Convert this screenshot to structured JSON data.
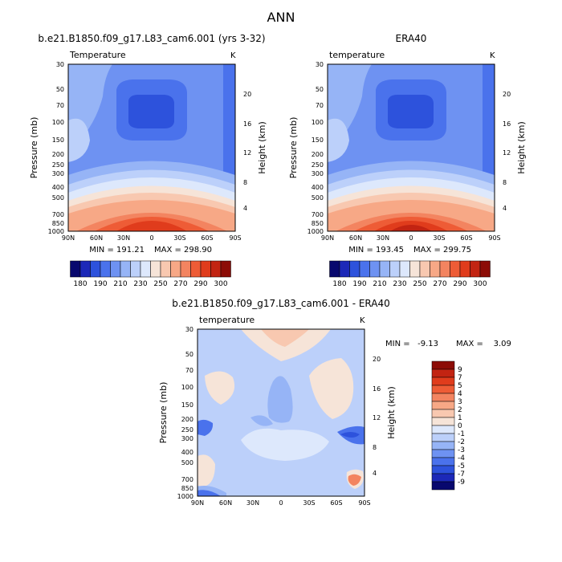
{
  "figure": {
    "title": "ANN"
  },
  "chart_data": [
    {
      "type": "contour",
      "panel": "model",
      "title": "b.e21.B1850.f09_g17.L83_cam6.001 (yrs 3-32)",
      "variable": "Temperature",
      "units": "K",
      "ylabel": "Pressure (mb)",
      "y2label": "Height (km)",
      "x_ticks": [
        "90N",
        "60N",
        "30N",
        "0",
        "30S",
        "60S",
        "90S"
      ],
      "y_ticks": [
        "30",
        "50",
        "70",
        "100",
        "150",
        "200",
        "250",
        "300",
        "400",
        "500",
        "700",
        "850",
        "1000"
      ],
      "y2_ticks": [
        "20",
        "16",
        "12",
        "8",
        "4"
      ],
      "min_text": "MIN = 191.21",
      "max_text": "MAX = 298.90",
      "min": 191.21,
      "max": 298.9
    },
    {
      "type": "contour",
      "panel": "obs",
      "title": "ERA40",
      "variable": "temperature",
      "units": "K",
      "ylabel": "Pressure (mb)",
      "y2label": "Height (km)",
      "x_ticks": [
        "90N",
        "60N",
        "30N",
        "0",
        "30S",
        "60S",
        "90S"
      ],
      "y_ticks": [
        "30",
        "50",
        "70",
        "100",
        "150",
        "200",
        "250",
        "300",
        "400",
        "500",
        "700",
        "850",
        "1000"
      ],
      "y2_ticks": [
        "20",
        "16",
        "12",
        "8",
        "4"
      ],
      "min_text": "MIN = 193.45",
      "max_text": "MAX = 299.75",
      "min": 193.45,
      "max": 299.75
    },
    {
      "type": "contour",
      "panel": "difference",
      "title": "b.e21.B1850.f09_g17.L83_cam6.001 - ERA40",
      "variable": "temperature",
      "units": "K",
      "ylabel": "Pressure (mb)",
      "y2label": "Height (km)",
      "x_ticks": [
        "90N",
        "60N",
        "30N",
        "0",
        "30S",
        "60S",
        "90S"
      ],
      "y_ticks": [
        "30",
        "50",
        "70",
        "100",
        "150",
        "200",
        "250",
        "300",
        "400",
        "500",
        "700",
        "850",
        "1000"
      ],
      "y2_ticks": [
        "20",
        "16",
        "12",
        "8",
        "4"
      ],
      "min_text": "MIN =   -9.13",
      "max_text": "MAX =    3.09",
      "min": -9.13,
      "max": 3.09
    }
  ],
  "colorbar_main": {
    "labels": [
      "180",
      "190",
      "210",
      "230",
      "250",
      "270",
      "290",
      "300"
    ],
    "colors": [
      "#08086e",
      "#1c28b8",
      "#2d52dc",
      "#4a72ec",
      "#6e92f2",
      "#96b4f6",
      "#bcd0fa",
      "#dde8fc",
      "#f6e4d8",
      "#f8c8b0",
      "#f7a886",
      "#f38460",
      "#ee5c36",
      "#e03c1c",
      "#c22412",
      "#8c0c06"
    ]
  },
  "colorbar_diff": {
    "labels": [
      "9",
      "7",
      "5",
      "4",
      "3",
      "2",
      "1",
      "0",
      "-1",
      "-2",
      "-3",
      "-4",
      "-5",
      "-7",
      "-9"
    ],
    "colors": [
      "#8c0c06",
      "#c22412",
      "#e03c1c",
      "#ee5c36",
      "#f38460",
      "#f7a886",
      "#f8c8b0",
      "#f6e4d8",
      "#dde8fc",
      "#bcd0fa",
      "#96b4f6",
      "#6e92f2",
      "#4a72ec",
      "#2d52dc",
      "#1c28b8",
      "#08086e"
    ]
  }
}
